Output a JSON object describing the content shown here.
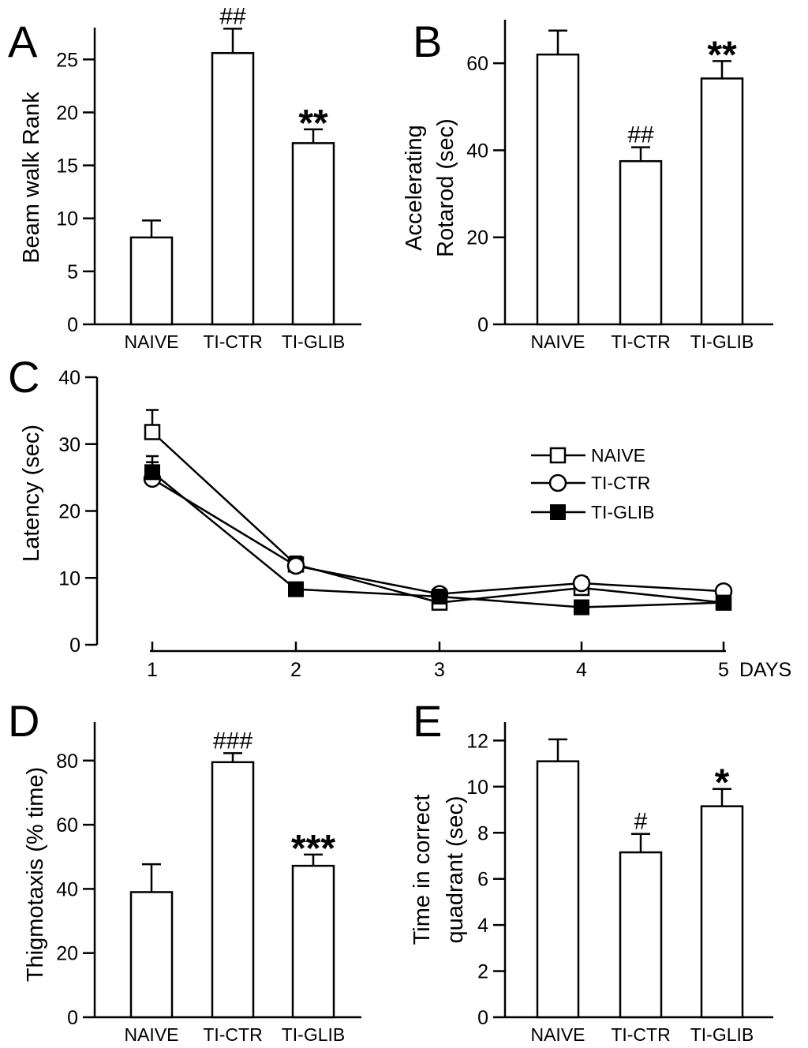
{
  "chart_data": [
    {
      "panel": "A",
      "type": "bar",
      "categories": [
        "NAIVE",
        "TI-CTR",
        "TI-GLIB"
      ],
      "values": [
        8.2,
        25.6,
        17.1
      ],
      "errors": [
        1.6,
        2.3,
        1.3
      ],
      "significance": [
        "",
        "##",
        "**"
      ],
      "ylabel": "Beam walk Rank",
      "ylim": [
        0,
        28
      ],
      "yticks": [
        0,
        5,
        10,
        15,
        20,
        25
      ]
    },
    {
      "panel": "B",
      "type": "bar",
      "categories": [
        "NAIVE",
        "TI-CTR",
        "TI-GLIB"
      ],
      "values": [
        62,
        37.5,
        56.5
      ],
      "errors": [
        5.5,
        3.2,
        4
      ],
      "significance": [
        "",
        "##",
        "**"
      ],
      "ylabel": "Accelerating Rotarod (sec)",
      "ylabel_lines": [
        "Accelerating",
        "Rotarod (sec)"
      ],
      "ylim": [
        0,
        70
      ],
      "yticks": [
        0,
        20,
        40,
        60
      ]
    },
    {
      "panel": "C",
      "type": "line",
      "x": [
        1,
        2,
        3,
        4,
        5
      ],
      "xticks": [
        "1",
        "2",
        "3",
        "4",
        "5"
      ],
      "xlabel": "DAYS",
      "ylabel": "Latency (sec)",
      "ylim": [
        0,
        40
      ],
      "yticks": [
        0,
        10,
        20,
        30,
        40
      ],
      "series": [
        {
          "name": "NAIVE",
          "marker": "open-square",
          "values": [
            31.8,
            12,
            6.3,
            8.5,
            6.3
          ],
          "errors": [
            3.3,
            1.2,
            0.8,
            1,
            0.8
          ]
        },
        {
          "name": "TI-CTR",
          "marker": "open-circle",
          "values": [
            24.8,
            11.8,
            7.6,
            9.2,
            8
          ],
          "errors": [
            2.5,
            1.1,
            0.8,
            0.9,
            0.8
          ]
        },
        {
          "name": "TI-GLIB",
          "marker": "filled-square",
          "values": [
            25.8,
            8.3,
            7.2,
            5.6,
            6.3
          ],
          "errors": [
            2.4,
            0.8,
            0.7,
            0.6,
            0.6
          ]
        }
      ]
    },
    {
      "panel": "D",
      "type": "bar",
      "categories": [
        "NAIVE",
        "TI-CTR",
        "TI-GLIB"
      ],
      "values": [
        39,
        79.5,
        47.2
      ],
      "errors": [
        8.7,
        2.8,
        3.5
      ],
      "significance": [
        "",
        "###",
        "***"
      ],
      "ylabel": "Thigmotaxis (% time)",
      "ylim": [
        0,
        92
      ],
      "yticks": [
        0,
        20,
        40,
        60,
        80
      ]
    },
    {
      "panel": "E",
      "type": "bar",
      "categories": [
        "NAIVE",
        "TI-CTR",
        "TI-GLIB"
      ],
      "values": [
        11.1,
        7.15,
        9.15
      ],
      "errors": [
        0.95,
        0.8,
        0.75
      ],
      "significance": [
        "",
        "#",
        "*"
      ],
      "ylabel": "Time in correct quadrant (sec)",
      "ylabel_lines": [
        "Time in correct",
        "quadrant (sec)"
      ],
      "ylim": [
        0,
        12.8
      ],
      "yticks": [
        "0",
        "2",
        "4",
        "6",
        "8",
        "10",
        "12"
      ]
    }
  ]
}
